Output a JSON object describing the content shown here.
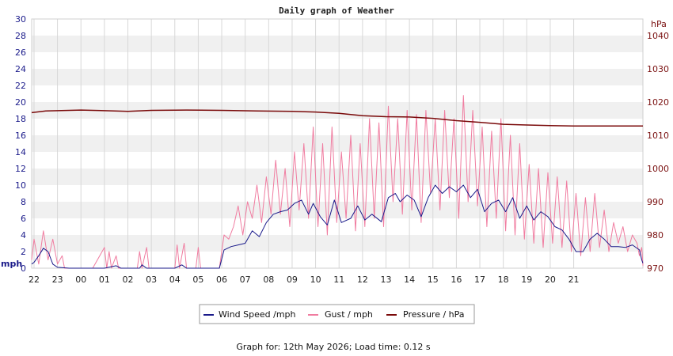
{
  "chart_data": {
    "type": "line",
    "title": "Daily graph of Weather",
    "footer": "Graph for: 12th May 2026; Load time: 0.12 s",
    "y_left": {
      "unit": "mph",
      "range": [
        0,
        30
      ],
      "ticks": [
        "0",
        "2",
        "4",
        "6",
        "8",
        "10",
        "12",
        "14",
        "16",
        "18",
        "20",
        "22",
        "24",
        "26",
        "28",
        "30"
      ]
    },
    "y_right": {
      "unit": "hPa",
      "range": [
        970,
        1045
      ],
      "ticks": [
        "970",
        "980",
        "990",
        "1000",
        "1010",
        "1020",
        "1030",
        "1040"
      ]
    },
    "x": {
      "unit": "hour",
      "range": [
        21.9,
        21.85
      ],
      "tick_labels": [
        "22",
        "23",
        "00",
        "01",
        "02",
        "03",
        "04",
        "05",
        "06",
        "07",
        "08",
        "09",
        "10",
        "11",
        "12",
        "13",
        "14",
        "15",
        "16",
        "17",
        "18",
        "19",
        "20",
        "21"
      ]
    },
    "grid": true,
    "legend_position": "bottom",
    "series": [
      {
        "name": "Wind Speed /mph",
        "color": "#1a1a8a",
        "axis": "left",
        "points": [
          [
            21.9,
            0.5
          ],
          [
            22.0,
            0.7
          ],
          [
            22.2,
            1.5
          ],
          [
            22.4,
            2.4
          ],
          [
            22.6,
            2.0
          ],
          [
            22.8,
            0.5
          ],
          [
            23.0,
            0.1
          ],
          [
            23.5,
            0
          ],
          [
            24.0,
            0
          ],
          [
            25.0,
            0
          ],
          [
            25.5,
            0.3
          ],
          [
            25.7,
            0
          ],
          [
            26.5,
            0
          ],
          [
            26.6,
            0.4
          ],
          [
            26.8,
            0
          ],
          [
            28.0,
            0
          ],
          [
            28.3,
            0.4
          ],
          [
            28.5,
            0
          ],
          [
            29.0,
            0
          ],
          [
            29.9,
            0
          ],
          [
            30.1,
            2.2
          ],
          [
            30.4,
            2.6
          ],
          [
            30.7,
            2.8
          ],
          [
            31.0,
            3.0
          ],
          [
            31.3,
            4.5
          ],
          [
            31.6,
            3.8
          ],
          [
            31.9,
            5.5
          ],
          [
            32.2,
            6.5
          ],
          [
            32.5,
            6.8
          ],
          [
            32.8,
            7.0
          ],
          [
            33.1,
            7.8
          ],
          [
            33.4,
            8.2
          ],
          [
            33.7,
            6.5
          ],
          [
            33.9,
            7.8
          ],
          [
            34.2,
            6.2
          ],
          [
            34.5,
            5.2
          ],
          [
            34.8,
            8.2
          ],
          [
            35.1,
            5.5
          ],
          [
            35.5,
            6.0
          ],
          [
            35.8,
            7.5
          ],
          [
            36.1,
            5.8
          ],
          [
            36.4,
            6.5
          ],
          [
            36.8,
            5.6
          ],
          [
            37.1,
            8.5
          ],
          [
            37.4,
            9.0
          ],
          [
            37.6,
            8.0
          ],
          [
            37.9,
            8.8
          ],
          [
            38.2,
            8.2
          ],
          [
            38.5,
            6.2
          ],
          [
            38.8,
            8.5
          ],
          [
            39.1,
            10.0
          ],
          [
            39.4,
            9.0
          ],
          [
            39.7,
            9.8
          ],
          [
            40.0,
            9.2
          ],
          [
            40.3,
            10.0
          ],
          [
            40.6,
            8.5
          ],
          [
            40.9,
            9.5
          ],
          [
            41.2,
            6.8
          ],
          [
            41.5,
            7.8
          ],
          [
            41.8,
            8.2
          ],
          [
            42.1,
            6.8
          ],
          [
            42.4,
            8.5
          ],
          [
            42.7,
            6.0
          ],
          [
            43.0,
            7.5
          ],
          [
            43.3,
            5.8
          ],
          [
            43.6,
            6.8
          ],
          [
            43.9,
            6.2
          ],
          [
            44.2,
            5.0
          ],
          [
            44.5,
            4.6
          ],
          [
            44.8,
            3.5
          ],
          [
            45.1,
            2.0
          ],
          [
            45.4,
            2.0
          ],
          [
            45.7,
            3.5
          ],
          [
            46.0,
            4.2
          ],
          [
            46.3,
            3.5
          ],
          [
            46.6,
            2.6
          ],
          [
            46.9,
            2.6
          ],
          [
            47.2,
            2.5
          ],
          [
            47.5,
            2.8
          ],
          [
            47.8,
            2.2
          ],
          [
            47.9,
            1.0
          ],
          [
            47.95,
            0.6
          ]
        ]
      },
      {
        "name": "Gust / mph",
        "color": "#f07ca0",
        "axis": "left",
        "points": [
          [
            21.9,
            1.0
          ],
          [
            22.0,
            3.5
          ],
          [
            22.2,
            0.5
          ],
          [
            22.4,
            4.5
          ],
          [
            22.6,
            1.0
          ],
          [
            22.8,
            3.5
          ],
          [
            23.0,
            0.5
          ],
          [
            23.2,
            1.5
          ],
          [
            23.3,
            0
          ],
          [
            24.5,
            0
          ],
          [
            25.0,
            2.5
          ],
          [
            25.1,
            0
          ],
          [
            25.2,
            2.0
          ],
          [
            25.3,
            0
          ],
          [
            25.5,
            1.5
          ],
          [
            25.6,
            0
          ],
          [
            26.4,
            0
          ],
          [
            26.5,
            2.0
          ],
          [
            26.6,
            0
          ],
          [
            26.8,
            2.5
          ],
          [
            26.9,
            0
          ],
          [
            28.0,
            0
          ],
          [
            28.1,
            2.8
          ],
          [
            28.2,
            0
          ],
          [
            28.4,
            3.0
          ],
          [
            28.5,
            0
          ],
          [
            28.9,
            0
          ],
          [
            29.0,
            2.5
          ],
          [
            29.1,
            0
          ],
          [
            29.9,
            0
          ],
          [
            30.0,
            2.0
          ],
          [
            30.1,
            4.0
          ],
          [
            30.3,
            3.5
          ],
          [
            30.5,
            5.0
          ],
          [
            30.7,
            7.5
          ],
          [
            30.9,
            4.0
          ],
          [
            31.1,
            8.0
          ],
          [
            31.3,
            6.0
          ],
          [
            31.5,
            10.0
          ],
          [
            31.7,
            5.5
          ],
          [
            31.9,
            11.0
          ],
          [
            32.1,
            6.5
          ],
          [
            32.3,
            13.0
          ],
          [
            32.5,
            6.5
          ],
          [
            32.7,
            12.0
          ],
          [
            32.9,
            5.0
          ],
          [
            33.1,
            14.0
          ],
          [
            33.3,
            7.0
          ],
          [
            33.5,
            15.0
          ],
          [
            33.7,
            6.0
          ],
          [
            33.9,
            17.0
          ],
          [
            34.1,
            5.0
          ],
          [
            34.3,
            15.0
          ],
          [
            34.5,
            4.0
          ],
          [
            34.7,
            17.0
          ],
          [
            34.9,
            5.5
          ],
          [
            35.1,
            14.0
          ],
          [
            35.3,
            6.0
          ],
          [
            35.5,
            16.0
          ],
          [
            35.7,
            4.5
          ],
          [
            35.9,
            15.0
          ],
          [
            36.1,
            5.0
          ],
          [
            36.3,
            18.0
          ],
          [
            36.5,
            6.0
          ],
          [
            36.7,
            17.5
          ],
          [
            36.9,
            5.0
          ],
          [
            37.1,
            19.5
          ],
          [
            37.3,
            8.0
          ],
          [
            37.5,
            18.0
          ],
          [
            37.7,
            6.5
          ],
          [
            37.9,
            19.0
          ],
          [
            38.1,
            7.0
          ],
          [
            38.3,
            18.5
          ],
          [
            38.5,
            5.5
          ],
          [
            38.7,
            19.0
          ],
          [
            38.9,
            9.0
          ],
          [
            39.1,
            18.0
          ],
          [
            39.3,
            7.0
          ],
          [
            39.5,
            19.0
          ],
          [
            39.7,
            8.5
          ],
          [
            39.9,
            18.0
          ],
          [
            40.1,
            6.0
          ],
          [
            40.3,
            20.8
          ],
          [
            40.5,
            8.0
          ],
          [
            40.7,
            19.0
          ],
          [
            40.9,
            7.5
          ],
          [
            41.1,
            17.0
          ],
          [
            41.3,
            5.0
          ],
          [
            41.5,
            16.5
          ],
          [
            41.7,
            6.0
          ],
          [
            41.9,
            18.0
          ],
          [
            42.1,
            4.5
          ],
          [
            42.3,
            16.0
          ],
          [
            42.5,
            4.0
          ],
          [
            42.7,
            15.0
          ],
          [
            42.9,
            3.5
          ],
          [
            43.1,
            12.5
          ],
          [
            43.3,
            3.0
          ],
          [
            43.5,
            12.0
          ],
          [
            43.7,
            2.5
          ],
          [
            43.9,
            11.5
          ],
          [
            44.1,
            3.0
          ],
          [
            44.3,
            11.0
          ],
          [
            44.5,
            2.5
          ],
          [
            44.7,
            10.5
          ],
          [
            44.9,
            2.0
          ],
          [
            45.1,
            9.0
          ],
          [
            45.3,
            1.5
          ],
          [
            45.5,
            8.5
          ],
          [
            45.7,
            2.0
          ],
          [
            45.9,
            9.0
          ],
          [
            46.1,
            2.5
          ],
          [
            46.3,
            7.0
          ],
          [
            46.5,
            2.0
          ],
          [
            46.7,
            5.5
          ],
          [
            46.9,
            3.0
          ],
          [
            47.1,
            5.0
          ],
          [
            47.3,
            2.0
          ],
          [
            47.5,
            4.0
          ],
          [
            47.7,
            3.0
          ],
          [
            47.8,
            1.5
          ],
          [
            47.9,
            2.5
          ],
          [
            47.95,
            0.3
          ]
        ]
      },
      {
        "name": "Pressure / hPa",
        "color": "#7a0a0a",
        "axis": "right",
        "points": [
          [
            21.9,
            1016.8
          ],
          [
            22.5,
            1017.3
          ],
          [
            24.0,
            1017.6
          ],
          [
            25.0,
            1017.4
          ],
          [
            26.0,
            1017.2
          ],
          [
            27.0,
            1017.5
          ],
          [
            28.5,
            1017.6
          ],
          [
            30.0,
            1017.5
          ],
          [
            31.5,
            1017.3
          ],
          [
            33.0,
            1017.2
          ],
          [
            34.0,
            1017.0
          ],
          [
            35.0,
            1016.6
          ],
          [
            36.0,
            1015.9
          ],
          [
            37.0,
            1015.6
          ],
          [
            38.0,
            1015.5
          ],
          [
            39.0,
            1015.1
          ],
          [
            40.0,
            1014.4
          ],
          [
            41.0,
            1013.9
          ],
          [
            42.0,
            1013.3
          ],
          [
            43.0,
            1013.1
          ],
          [
            44.0,
            1012.9
          ],
          [
            45.0,
            1012.8
          ],
          [
            46.0,
            1012.8
          ],
          [
            47.0,
            1012.8
          ],
          [
            47.95,
            1012.8
          ]
        ]
      }
    ]
  }
}
